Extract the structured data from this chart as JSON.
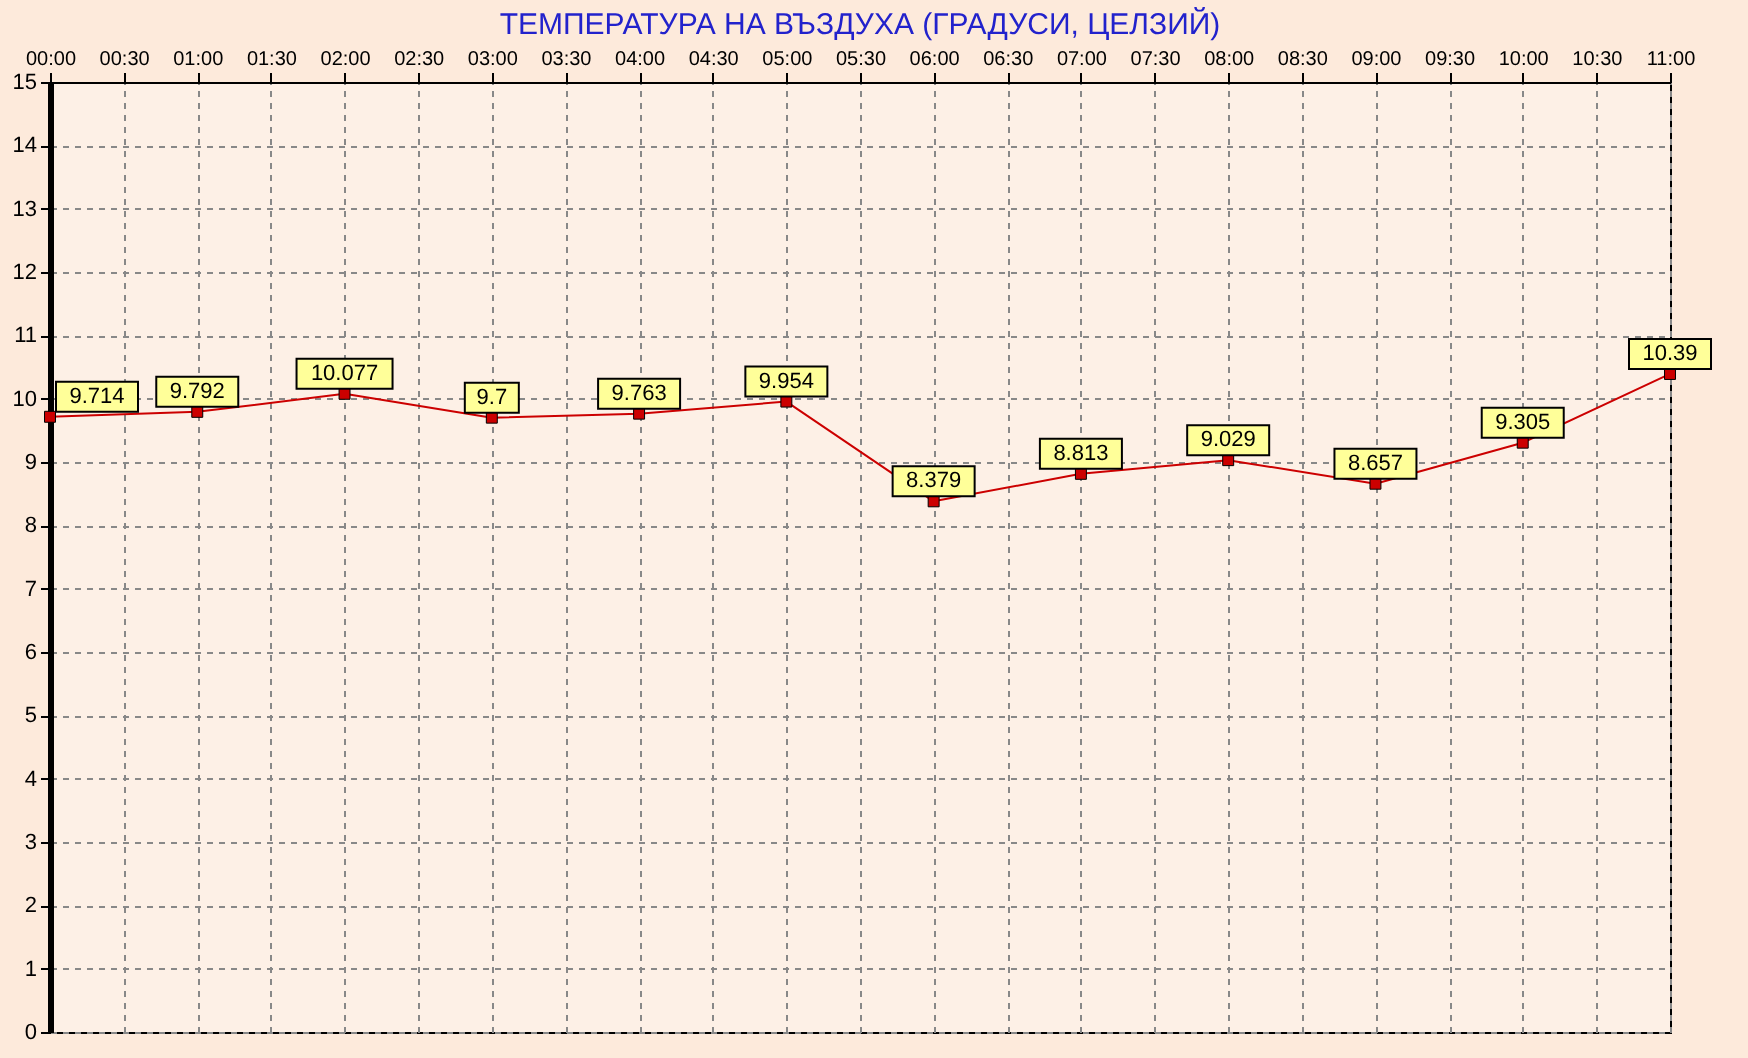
{
  "chart_data": {
    "type": "line",
    "title": "ТЕМПЕРАТУРА НА ВЪЗДУХА  (ГРАДУСИ, ЦЕЛЗИЙ)",
    "x": [
      0,
      1,
      2,
      3,
      4,
      5,
      6,
      7,
      8,
      9,
      10,
      11
    ],
    "series": [
      {
        "color": "#cc0000",
        "values": [
          9.714,
          9.792,
          10.077,
          9.7,
          9.763,
          9.954,
          8.379,
          8.813,
          9.029,
          8.657,
          9.305,
          10.39
        ]
      }
    ],
    "xlim": [
      0,
      11
    ],
    "xticks": [
      {
        "value": 0,
        "label": "00:00"
      },
      {
        "value": 0.5,
        "label": "00:30"
      },
      {
        "value": 1,
        "label": "01:00"
      },
      {
        "value": 1.5,
        "label": "01:30"
      },
      {
        "value": 2,
        "label": "02:00"
      },
      {
        "value": 2.5,
        "label": "02:30"
      },
      {
        "value": 3,
        "label": "03:00"
      },
      {
        "value": 3.5,
        "label": "03:30"
      },
      {
        "value": 4,
        "label": "04:00"
      },
      {
        "value": 4.5,
        "label": "04:30"
      },
      {
        "value": 5,
        "label": "05:00"
      },
      {
        "value": 5.5,
        "label": "05:30"
      },
      {
        "value": 6,
        "label": "06:00"
      },
      {
        "value": 6.5,
        "label": "06:30"
      },
      {
        "value": 7,
        "label": "07:00"
      },
      {
        "value": 7.5,
        "label": "07:30"
      },
      {
        "value": 8,
        "label": "08:00"
      },
      {
        "value": 8.5,
        "label": "08:30"
      },
      {
        "value": 9,
        "label": "09:00"
      },
      {
        "value": 9.5,
        "label": "09:30"
      },
      {
        "value": 10,
        "label": "10:00"
      },
      {
        "value": 10.5,
        "label": "10:30"
      },
      {
        "value": 11,
        "label": "11:00"
      }
    ],
    "ylim": [
      0,
      15
    ],
    "yticks": [
      0,
      1,
      2,
      3,
      4,
      5,
      6,
      7,
      8,
      9,
      10,
      11,
      12,
      13,
      14,
      15
    ],
    "grid": true,
    "marker": "square",
    "data_labels": true
  }
}
